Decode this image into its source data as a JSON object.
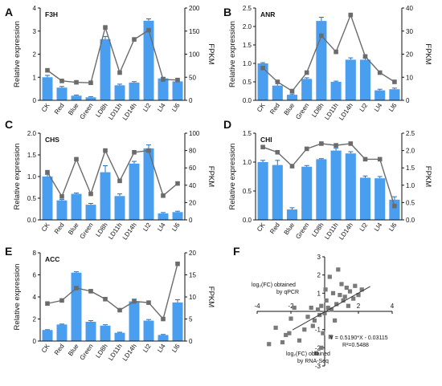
{
  "figure": {
    "colors": {
      "bar": "#4a9ef0",
      "line": "#6b6b6b",
      "marker": "#6b6b6b",
      "scatter_marker": "#7a7a7a"
    }
  },
  "chart_data": [
    {
      "panel": "A",
      "type": "bar+line",
      "title": "F3H",
      "categories": [
        "CK",
        "Red",
        "Blue",
        "Green",
        "LD8h",
        "LD11h",
        "LD14h",
        "Ll2",
        "Ll4",
        "Ll6"
      ],
      "series": [
        {
          "type": "bar",
          "axis": "left",
          "values": [
            1.0,
            0.55,
            0.2,
            0.13,
            2.65,
            0.65,
            0.77,
            3.45,
            0.95,
            0.82
          ],
          "errors": [
            0.08,
            0.05,
            0.03,
            0.03,
            0.12,
            0.05,
            0.04,
            0.08,
            0.05,
            0.05
          ]
        },
        {
          "type": "line",
          "axis": "right",
          "values": [
            65,
            42,
            39,
            38,
            158,
            60,
            132,
            152,
            45,
            44
          ]
        }
      ],
      "ylabel": "Relative expression",
      "y2label": "FPKM",
      "ylim": [
        0,
        4
      ],
      "yticks": [
        "0",
        "1",
        "2",
        "3",
        "4"
      ],
      "y2lim": [
        0,
        200
      ],
      "y2ticks": [
        "0",
        "50",
        "100",
        "150",
        "200"
      ]
    },
    {
      "panel": "B",
      "type": "bar+line",
      "title": "ANR",
      "categories": [
        "CK",
        "Red",
        "Blue",
        "Green",
        "LD8h",
        "LD11h",
        "LD14h",
        "Ll2",
        "Ll4",
        "Ll6"
      ],
      "series": [
        {
          "type": "bar",
          "axis": "left",
          "values": [
            1.0,
            0.4,
            0.15,
            0.58,
            2.15,
            0.5,
            1.1,
            1.1,
            0.27,
            0.3
          ],
          "errors": [
            0.02,
            0.12,
            0.02,
            0.03,
            0.1,
            0.02,
            0.05,
            0.05,
            0.03,
            0.03
          ]
        },
        {
          "type": "line",
          "axis": "right",
          "values": [
            14,
            8,
            4,
            12,
            28,
            21,
            37,
            19,
            12,
            8
          ]
        }
      ],
      "ylabel": "Relative expression",
      "y2label": "FPKM",
      "ylim": [
        0,
        2.5
      ],
      "yticks": [
        "0.0",
        "0.5",
        "1.0",
        "1.5",
        "2.0",
        "2.5"
      ],
      "y2lim": [
        0,
        40
      ],
      "y2ticks": [
        "0",
        "10",
        "20",
        "30",
        "40"
      ]
    },
    {
      "panel": "C",
      "type": "bar+line",
      "title": "CHS",
      "categories": [
        "CK",
        "Red",
        "Blue",
        "Green",
        "LD8h",
        "LD11h",
        "LD14h",
        "Ll2",
        "Ll4",
        "Ll6"
      ],
      "series": [
        {
          "type": "bar",
          "axis": "left",
          "values": [
            1.0,
            0.45,
            0.6,
            0.35,
            1.1,
            0.55,
            1.3,
            1.65,
            0.15,
            0.18
          ],
          "errors": [
            0.05,
            0.02,
            0.02,
            0.03,
            0.15,
            0.05,
            0.05,
            0.08,
            0.02,
            0.02
          ]
        },
        {
          "type": "line",
          "axis": "right",
          "values": [
            55,
            27,
            70,
            30,
            80,
            45,
            78,
            80,
            28,
            42
          ]
        }
      ],
      "ylabel": "Relative expression",
      "y2label": "FPKM",
      "ylim": [
        0,
        2.0
      ],
      "yticks": [
        "0.0",
        "0.5",
        "1.0",
        "1.5",
        "2.0"
      ],
      "y2lim": [
        0,
        100
      ],
      "y2ticks": [
        "0",
        "20",
        "40",
        "60",
        "80",
        "100"
      ]
    },
    {
      "panel": "D",
      "type": "bar+line",
      "title": "CHI",
      "categories": [
        "CK",
        "Red",
        "Blue",
        "Green",
        "LD8h",
        "LD11h",
        "LD14h",
        "Ll2",
        "Ll4",
        "Ll6"
      ],
      "series": [
        {
          "type": "bar",
          "axis": "left",
          "values": [
            1.0,
            0.95,
            0.18,
            0.92,
            1.05,
            1.2,
            1.15,
            0.73,
            0.72,
            0.35
          ],
          "errors": [
            0.03,
            0.08,
            0.03,
            0.02,
            0.01,
            0.04,
            0.03,
            0.03,
            0.03,
            0.05
          ]
        },
        {
          "type": "line",
          "axis": "right",
          "values": [
            2.1,
            1.95,
            1.55,
            2.05,
            2.2,
            2.15,
            2.2,
            1.75,
            1.75,
            0.4
          ]
        }
      ],
      "ylabel": "Relative expression",
      "y2label": "FPKM",
      "ylim": [
        0,
        1.5
      ],
      "yticks": [
        "0.0",
        "0.5",
        "1.0",
        "1.5"
      ],
      "y2lim": [
        0,
        2.5
      ],
      "y2ticks": [
        "0.0",
        "0.5",
        "1.0",
        "1.5",
        "2.0",
        "2.5"
      ]
    },
    {
      "panel": "E",
      "type": "bar+line",
      "title": "ACC",
      "categories": [
        "CK",
        "Red",
        "Blue",
        "Green",
        "LD8h",
        "LD11h",
        "LD14h",
        "Ll2",
        "Ll4",
        "Ll6"
      ],
      "series": [
        {
          "type": "bar",
          "axis": "left",
          "values": [
            1.0,
            1.5,
            6.2,
            1.75,
            1.4,
            0.75,
            3.6,
            1.85,
            0.55,
            3.5
          ],
          "errors": [
            0.03,
            0.04,
            0.08,
            0.1,
            0.08,
            0.05,
            0.2,
            0.1,
            0.05,
            0.25
          ]
        },
        {
          "type": "line",
          "axis": "right",
          "values": [
            8.5,
            9.2,
            12.0,
            11.3,
            9.5,
            7.0,
            9.0,
            8.7,
            5.0,
            17.5
          ]
        }
      ],
      "ylabel": "Relative expression",
      "y2label": "FPKM",
      "ylim": [
        0,
        8
      ],
      "yticks": [
        "0",
        "2",
        "4",
        "6",
        "8"
      ],
      "y2lim": [
        0,
        20
      ],
      "y2ticks": [
        "0",
        "5",
        "10",
        "15",
        "20"
      ]
    },
    {
      "panel": "F",
      "type": "scatter",
      "xlabel_line1": "log₂(FC) obtained",
      "xlabel_line2": "by RNA-Seq",
      "ylabel_line1": "log₂(FC) obtained",
      "ylabel_line2": "by qPCR",
      "xlim": [
        -4,
        4
      ],
      "ylim": [
        -3,
        3
      ],
      "xticks": [
        "-4",
        "-2",
        "2",
        "4"
      ],
      "yticks": [
        "-3",
        "-2",
        "-1",
        "1",
        "2",
        "3"
      ],
      "fit_line": {
        "slope": 0.519,
        "intercept": -0.03115
      },
      "equation": "Y = 0.5190*X - 0.03115",
      "r2": "R²=0.5488",
      "points": [
        [
          -3.3,
          -1.8
        ],
        [
          -2.5,
          -1.7
        ],
        [
          -2.3,
          -1.3
        ],
        [
          -2.1,
          -1.2
        ],
        [
          -2.9,
          -0.9
        ],
        [
          -2.0,
          -0.4
        ],
        [
          -1.5,
          -1.6
        ],
        [
          -1.2,
          -1.0
        ],
        [
          -1.0,
          -0.3
        ],
        [
          -0.8,
          0.2
        ],
        [
          -0.6,
          -0.5
        ],
        [
          -0.5,
          -2.3
        ],
        [
          -0.4,
          0.1
        ],
        [
          -0.3,
          -0.2
        ],
        [
          -0.2,
          0.3
        ],
        [
          -0.1,
          -1.2
        ],
        [
          0.0,
          -0.1
        ],
        [
          0.1,
          0.6
        ],
        [
          0.2,
          0.2
        ],
        [
          0.3,
          1.9
        ],
        [
          0.4,
          0.1
        ],
        [
          0.5,
          1.0
        ],
        [
          0.6,
          -0.5
        ],
        [
          0.7,
          0.4
        ],
        [
          0.8,
          2.3
        ],
        [
          0.9,
          0.9
        ],
        [
          1.0,
          1.5
        ],
        [
          1.1,
          0.6
        ],
        [
          1.2,
          0.8
        ],
        [
          1.3,
          1.3
        ],
        [
          1.5,
          1.1
        ],
        [
          1.7,
          0.7
        ],
        [
          1.8,
          1.4
        ],
        [
          2.0,
          0.9
        ],
        [
          2.2,
          1.2
        ],
        [
          -1.8,
          0.2
        ],
        [
          -0.7,
          -0.8
        ],
        [
          0.35,
          -1.4
        ],
        [
          -0.2,
          -2.0
        ],
        [
          0.05,
          1.2
        ],
        [
          1.4,
          0.3
        ]
      ]
    }
  ]
}
